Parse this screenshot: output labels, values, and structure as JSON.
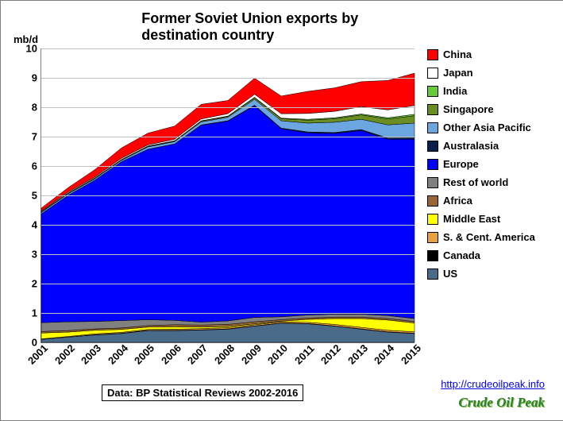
{
  "chart": {
    "title": "Former Soviet Union exports by destination country",
    "y_axis_label": "mb/d",
    "type": "stacked-area",
    "background_color": "#ffffff",
    "grid_color": "#c0c0c0",
    "title_fontsize": 18,
    "label_fontsize": 13,
    "ylim": [
      0,
      10
    ],
    "ytick_step": 1,
    "categories": [
      "2001",
      "2002",
      "2003",
      "2004",
      "2005",
      "2006",
      "2007",
      "2008",
      "2009",
      "2010",
      "2011",
      "2012",
      "2013",
      "2014",
      "2015"
    ],
    "series": [
      {
        "name": "US",
        "color": "#4a6a8a",
        "values": [
          0.1,
          0.18,
          0.25,
          0.3,
          0.4,
          0.4,
          0.42,
          0.45,
          0.55,
          0.65,
          0.63,
          0.55,
          0.45,
          0.35,
          0.3
        ]
      },
      {
        "name": "Canada",
        "color": "#000000",
        "values": [
          0.0,
          0.0,
          0.01,
          0.01,
          0.01,
          0.01,
          0.01,
          0.01,
          0.01,
          0.01,
          0.01,
          0.01,
          0.01,
          0.01,
          0.01
        ]
      },
      {
        "name": "S. & Cent. America",
        "color": "#e8a33d",
        "values": [
          0.02,
          0.02,
          0.03,
          0.03,
          0.03,
          0.04,
          0.04,
          0.04,
          0.04,
          0.04,
          0.04,
          0.05,
          0.05,
          0.05,
          0.05
        ]
      },
      {
        "name": "Middle East",
        "color": "#ffff00",
        "values": [
          0.2,
          0.15,
          0.12,
          0.1,
          0.08,
          0.08,
          0.05,
          0.04,
          0.03,
          0.02,
          0.1,
          0.2,
          0.3,
          0.35,
          0.3
        ]
      },
      {
        "name": "Africa",
        "color": "#996633",
        "values": [
          0.05,
          0.05,
          0.05,
          0.05,
          0.05,
          0.07,
          0.07,
          0.07,
          0.07,
          0.05,
          0.05,
          0.05,
          0.05,
          0.05,
          0.05
        ]
      },
      {
        "name": "Rest of world",
        "color": "#808080",
        "values": [
          0.3,
          0.3,
          0.25,
          0.25,
          0.2,
          0.15,
          0.1,
          0.12,
          0.15,
          0.1,
          0.1,
          0.1,
          0.1,
          0.1,
          0.1
        ]
      },
      {
        "name": "Europe",
        "color": "#0000ff",
        "values": [
          3.7,
          4.3,
          4.8,
          5.4,
          5.8,
          6.0,
          6.7,
          6.8,
          7.2,
          6.4,
          6.2,
          6.15,
          6.25,
          6.0,
          6.1
        ]
      },
      {
        "name": "Australasia",
        "color": "#0a1f4a",
        "values": [
          0.0,
          0.0,
          0.0,
          0.0,
          0.0,
          0.0,
          0.01,
          0.01,
          0.02,
          0.02,
          0.03,
          0.03,
          0.03,
          0.04,
          0.05
        ]
      },
      {
        "name": "Other Asia Pacific",
        "color": "#6ca6e0",
        "values": [
          0.05,
          0.05,
          0.05,
          0.05,
          0.08,
          0.08,
          0.1,
          0.12,
          0.2,
          0.25,
          0.3,
          0.35,
          0.35,
          0.45,
          0.5
        ]
      },
      {
        "name": "Singapore",
        "color": "#6b8e23",
        "values": [
          0.02,
          0.02,
          0.02,
          0.02,
          0.02,
          0.02,
          0.03,
          0.03,
          0.05,
          0.07,
          0.1,
          0.12,
          0.15,
          0.2,
          0.25
        ]
      },
      {
        "name": "India",
        "color": "#66cc33",
        "values": [
          0.01,
          0.01,
          0.01,
          0.01,
          0.01,
          0.01,
          0.01,
          0.01,
          0.02,
          0.02,
          0.03,
          0.03,
          0.03,
          0.04,
          0.05
        ]
      },
      {
        "name": "Japan",
        "color": "#ffffff",
        "values": [
          0.02,
          0.03,
          0.03,
          0.04,
          0.04,
          0.05,
          0.06,
          0.08,
          0.1,
          0.15,
          0.2,
          0.22,
          0.25,
          0.27,
          0.3
        ]
      },
      {
        "name": "China",
        "color": "#ff0000",
        "values": [
          0.1,
          0.15,
          0.25,
          0.35,
          0.4,
          0.45,
          0.5,
          0.45,
          0.55,
          0.6,
          0.75,
          0.8,
          0.85,
          1.0,
          1.1
        ]
      }
    ],
    "legend_order": [
      "China",
      "Japan",
      "India",
      "Singapore",
      "Other Asia Pacific",
      "Australasia",
      "Europe",
      "Rest of world",
      "Africa",
      "Middle East",
      "S. & Cent. America",
      "Canada",
      "US"
    ],
    "data_source": "Data: BP Statistical Reviews 2002-2016",
    "credit_link": "http://crudeoilpeak.info",
    "credit_logo": "Crude Oil Peak"
  }
}
